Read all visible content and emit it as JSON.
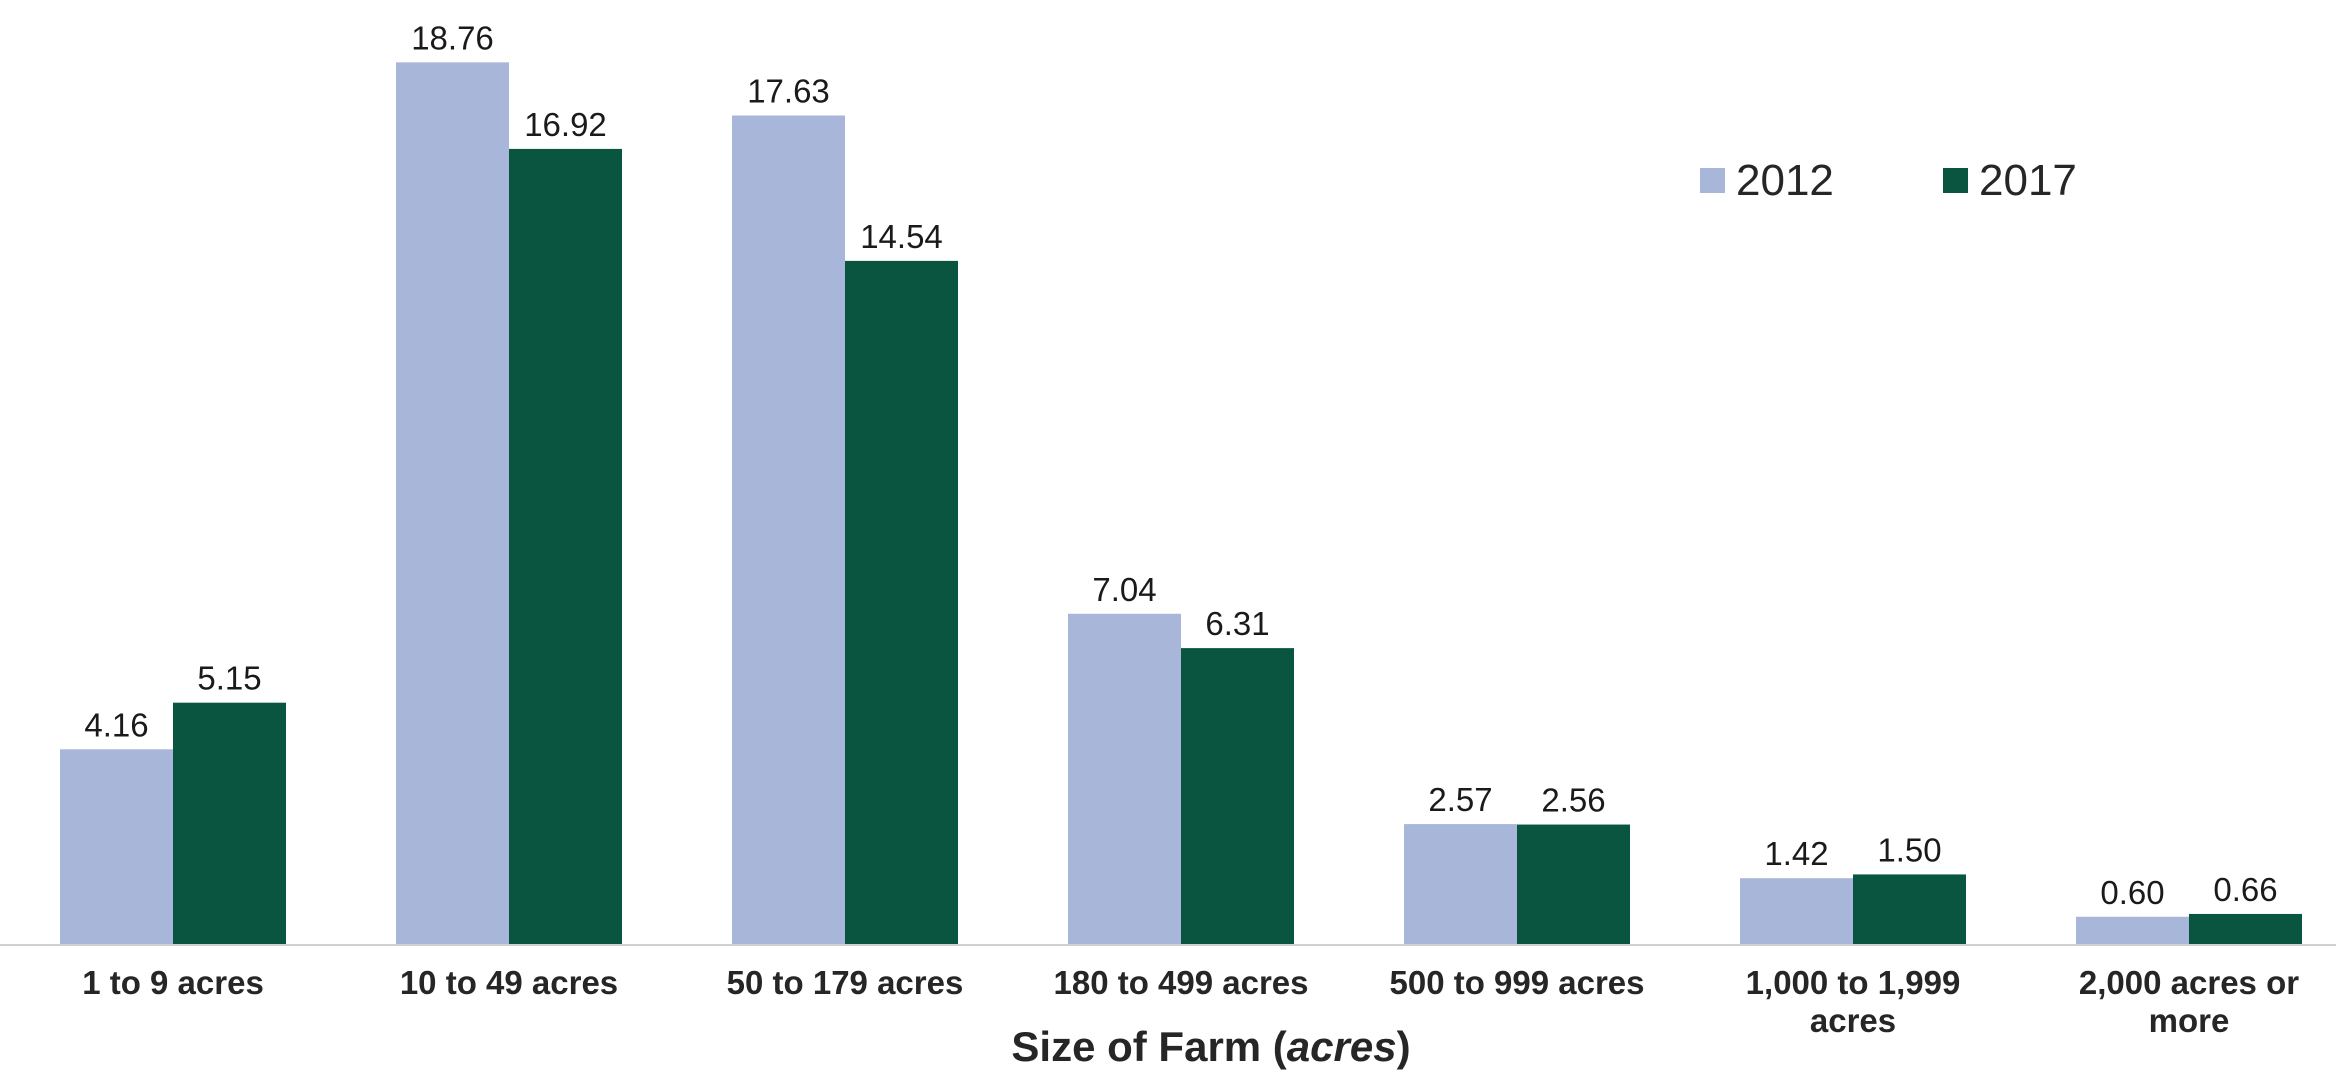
{
  "chart_data": {
    "type": "bar",
    "title": "",
    "categories": [
      [
        "1 to 9 acres"
      ],
      [
        "10 to 49 acres"
      ],
      [
        "50 to 179 acres"
      ],
      [
        "180 to 499 acres"
      ],
      [
        "500 to 999 acres"
      ],
      [
        "1,000 to 1,999",
        "acres"
      ],
      [
        "2,000 acres or",
        "more"
      ]
    ],
    "series": [
      {
        "name": "2012",
        "color": "#a8b6da",
        "values": [
          4.16,
          18.76,
          17.63,
          7.04,
          2.57,
          1.42,
          0.6
        ],
        "labels": [
          "4.16",
          "18.76",
          "17.63",
          "7.04",
          "2.57",
          "1.42",
          "0.60"
        ]
      },
      {
        "name": "2017",
        "color": "#0a5540",
        "values": [
          5.15,
          16.92,
          14.54,
          6.31,
          2.56,
          1.5,
          0.66
        ],
        "labels": [
          "5.15",
          "16.92",
          "14.54",
          "6.31",
          "2.56",
          "1.50",
          "0.66"
        ]
      }
    ],
    "xlabel_prefix": "Size of Farm (",
    "xlabel_unit": "acres",
    "xlabel_suffix": ")",
    "ylabel": "",
    "ylim": [
      0,
      20
    ],
    "grid": false,
    "legend_position": "top-right"
  }
}
